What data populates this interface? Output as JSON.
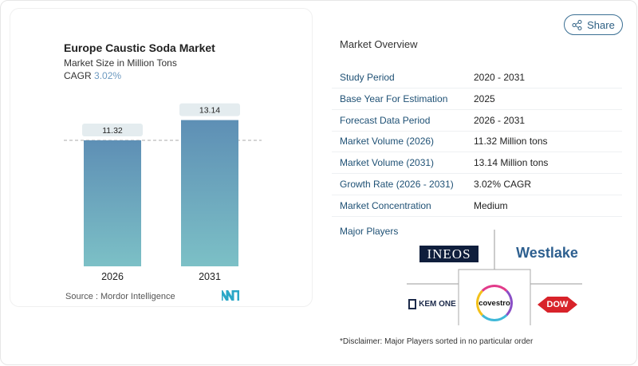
{
  "share_label": "Share",
  "chart_data": {
    "type": "bar",
    "title": "Europe Caustic Soda Market",
    "subtitle": "Market Size in Million Tons",
    "cagr_label": "CAGR",
    "cagr_value": "3.02%",
    "categories": [
      "2026",
      "2031"
    ],
    "values": [
      11.32,
      13.14
    ],
    "value_labels": [
      "11.32",
      "13.14"
    ],
    "reference_line": 11.32,
    "grid": false,
    "colors": {
      "bar_top": "#5e8fb5",
      "bar_bottom": "#7cc0c6"
    },
    "source": "Source :  Mordor Intelligence"
  },
  "overview": {
    "title": "Market Overview",
    "rows": [
      {
        "label": "Study Period",
        "value": "2020 - 2031"
      },
      {
        "label": "Base Year For Estimation",
        "value": "2025"
      },
      {
        "label": "Forecast Data Period",
        "value": "2026 - 2031"
      },
      {
        "label": "Market Volume (2026)",
        "value": "11.32 Million tons"
      },
      {
        "label": "Market Volume (2031)",
        "value": "13.14 Million tons"
      },
      {
        "label": "Growth Rate (2026 - 2031)",
        "value": "3.02% CAGR"
      },
      {
        "label": "Market Concentration",
        "value": "Medium"
      }
    ],
    "major_players_label": "Major Players",
    "players": [
      "INEOS",
      "Westlake",
      "KEM ONE",
      "covestro",
      "DOW"
    ],
    "disclaimer": "*Disclaimer: Major Players sorted in no particular order"
  }
}
